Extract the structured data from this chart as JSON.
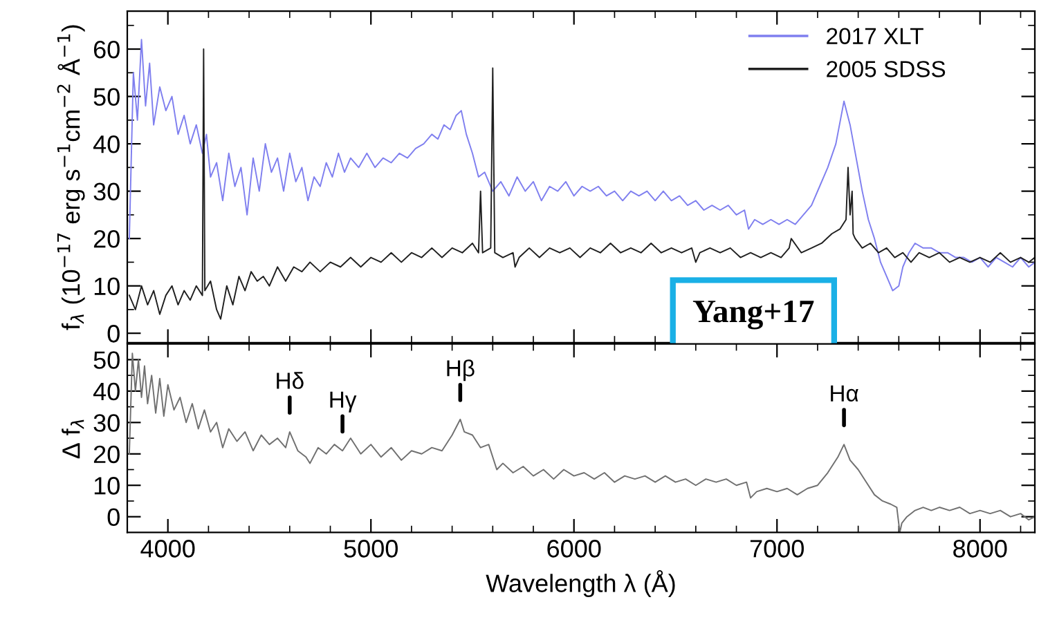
{
  "chart_data": [
    {
      "type": "line",
      "ylabel": "f$_{λ}$ (10$^{−17}$ erg s$^{−1}$cm$^{−2}$ Å$^{−1}$)",
      "legend": "top right",
      "tick_labels": "y",
      "xlim": [
        3800,
        8270
      ],
      "ylim": [
        -2,
        68
      ],
      "xticks": [
        4000,
        5000,
        6000,
        7000,
        8000,
        {
          "value": 4200,
          "label": null
        },
        {
          "value": 4400,
          "label": null
        },
        {
          "value": 4600,
          "label": null
        },
        {
          "value": 4800,
          "label": null
        },
        {
          "value": 5200,
          "label": null
        },
        {
          "value": 5400,
          "label": null
        },
        {
          "value": 5600,
          "label": null
        },
        {
          "value": 5800,
          "label": null
        },
        {
          "value": 6200,
          "label": null
        },
        {
          "value": 6400,
          "label": null
        },
        {
          "value": 6600,
          "label": null
        },
        {
          "value": 6800,
          "label": null
        },
        {
          "value": 7200,
          "label": null
        },
        {
          "value": 7400,
          "label": null
        },
        {
          "value": 7600,
          "label": null
        },
        {
          "value": 7800,
          "label": null
        },
        {
          "value": 8200,
          "label": null
        }
      ],
      "yticks": [
        0,
        10,
        20,
        30,
        40,
        50,
        60,
        {
          "value": 5,
          "label": null
        },
        {
          "value": 15,
          "label": null
        },
        {
          "value": 25,
          "label": null
        },
        {
          "value": 35,
          "label": null
        },
        {
          "value": 45,
          "label": null
        },
        {
          "value": 55,
          "label": null
        },
        {
          "value": 65,
          "label": null
        }
      ],
      "annotations": [
        "Yang+17"
      ],
      "series": [
        {
          "name": "2017 XLT",
          "color": "#7f7fef",
          "x": [
            3810,
            3830,
            3850,
            3870,
            3890,
            3910,
            3930,
            3960,
            3990,
            4020,
            4050,
            4080,
            4110,
            4140,
            4170,
            4190,
            4210,
            4240,
            4270,
            4300,
            4330,
            4360,
            4390,
            4420,
            4450,
            4480,
            4510,
            4540,
            4570,
            4600,
            4630,
            4660,
            4690,
            4720,
            4750,
            4780,
            4810,
            4840,
            4870,
            4900,
            4940,
            4980,
            5020,
            5060,
            5100,
            5140,
            5180,
            5220,
            5260,
            5300,
            5330,
            5360,
            5390,
            5420,
            5445,
            5470,
            5500,
            5530,
            5560,
            5600,
            5640,
            5680,
            5720,
            5760,
            5800,
            5840,
            5880,
            5920,
            5960,
            6000,
            6040,
            6080,
            6120,
            6160,
            6200,
            6240,
            6280,
            6320,
            6360,
            6400,
            6440,
            6480,
            6520,
            6560,
            6600,
            6640,
            6680,
            6720,
            6760,
            6800,
            6840,
            6860,
            6890,
            6930,
            6970,
            7010,
            7050,
            7090,
            7130,
            7170,
            7210,
            7250,
            7290,
            7330,
            7360,
            7390,
            7420,
            7450,
            7480,
            7510,
            7540,
            7570,
            7600,
            7620,
            7650,
            7680,
            7720,
            7760,
            7800,
            7840,
            7880,
            7920,
            7960,
            8000,
            8040,
            8080,
            8120,
            8160,
            8200,
            8240,
            8270
          ],
          "values": [
            20,
            55,
            45,
            62,
            48,
            57,
            44,
            52,
            47,
            50,
            42,
            46,
            40,
            44,
            38,
            42,
            33,
            36,
            28,
            38,
            31,
            35,
            25,
            37,
            30,
            40,
            34,
            37,
            30,
            38,
            32,
            35,
            28,
            33,
            31,
            36,
            33,
            38,
            34,
            37,
            35,
            38,
            35,
            37,
            36,
            38,
            37,
            39,
            40,
            42,
            41,
            44,
            43,
            46,
            47,
            42,
            38,
            33,
            34,
            30,
            32,
            29,
            33,
            30,
            32,
            28,
            31,
            30,
            32,
            29,
            31,
            30,
            31,
            29,
            30,
            28,
            30,
            29,
            30,
            28,
            30,
            28,
            29,
            27,
            28,
            26,
            27,
            26,
            27,
            25,
            26,
            22,
            24,
            23,
            24,
            23,
            24,
            23,
            25,
            27,
            31,
            35,
            40,
            49,
            44,
            37,
            30,
            24,
            20,
            15,
            12,
            9,
            10,
            14,
            17,
            19,
            18,
            18,
            17,
            17,
            16,
            16,
            15,
            16,
            14,
            16,
            15,
            14,
            16,
            14,
            15
          ]
        },
        {
          "name": "2005 SDSS",
          "color": "#202020",
          "x": [
            3810,
            3840,
            3870,
            3900,
            3930,
            3960,
            3990,
            4020,
            4050,
            4080,
            4110,
            4140,
            4170,
            4176,
            4182,
            4210,
            4240,
            4260,
            4290,
            4320,
            4350,
            4380,
            4410,
            4440,
            4470,
            4500,
            4540,
            4580,
            4620,
            4660,
            4700,
            4750,
            4800,
            4850,
            4900,
            4950,
            5000,
            5050,
            5100,
            5150,
            5200,
            5250,
            5300,
            5350,
            5400,
            5450,
            5500,
            5530,
            5540,
            5550,
            5590,
            5600,
            5610,
            5650,
            5700,
            5710,
            5730,
            5780,
            5830,
            5880,
            5930,
            5980,
            6030,
            6080,
            6130,
            6180,
            6230,
            6280,
            6330,
            6380,
            6430,
            6480,
            6530,
            6580,
            6600,
            6620,
            6670,
            6720,
            6770,
            6820,
            6870,
            6920,
            6970,
            7020,
            7060,
            7070,
            7120,
            7170,
            7220,
            7270,
            7310,
            7340,
            7350,
            7360,
            7370,
            7375,
            7385,
            7420,
            7460,
            7500,
            7540,
            7580,
            7620,
            7660,
            7700,
            7750,
            7800,
            7850,
            7900,
            7950,
            8000,
            8050,
            8100,
            8150,
            8200,
            8240,
            8270
          ],
          "values": [
            8,
            5,
            10,
            6,
            9,
            4,
            8,
            10,
            6,
            9,
            7,
            10,
            8,
            60,
            9,
            11,
            5,
            3,
            10,
            6,
            12,
            9,
            13,
            11,
            12,
            10,
            14,
            11,
            14,
            13,
            15,
            13,
            15,
            14,
            16,
            14,
            16,
            15,
            17,
            15,
            17,
            16,
            18,
            16,
            18,
            17,
            19,
            17,
            30,
            17,
            18,
            56,
            17,
            16,
            17,
            14,
            16,
            18,
            16,
            18,
            17,
            18,
            16,
            18,
            17,
            19,
            17,
            18,
            17,
            19,
            17,
            18,
            17,
            18,
            15,
            17,
            18,
            17,
            18,
            16,
            17,
            16,
            17,
            16,
            18,
            20,
            17,
            18,
            19,
            21,
            22,
            24,
            35,
            25,
            30,
            21,
            20,
            18,
            19,
            17,
            18,
            16,
            17,
            15,
            17,
            16,
            17,
            15,
            16,
            15,
            16,
            15,
            17,
            15,
            16,
            15,
            16
          ]
        }
      ]
    },
    {
      "type": "line",
      "ylabel": "Δ f$_{λ}$",
      "xlabel": "Wavelength λ (Å)",
      "xlim": [
        3800,
        8270
      ],
      "ylim": [
        -5,
        55
      ],
      "xticks": [
        4000,
        5000,
        6000,
        7000,
        8000,
        {
          "value": 4200,
          "label": null
        },
        {
          "value": 4400,
          "label": null
        },
        {
          "value": 4600,
          "label": null
        },
        {
          "value": 4800,
          "label": null
        },
        {
          "value": 5200,
          "label": null
        },
        {
          "value": 5400,
          "label": null
        },
        {
          "value": 5600,
          "label": null
        },
        {
          "value": 5800,
          "label": null
        },
        {
          "value": 6200,
          "label": null
        },
        {
          "value": 6400,
          "label": null
        },
        {
          "value": 6600,
          "label": null
        },
        {
          "value": 6800,
          "label": null
        },
        {
          "value": 7200,
          "label": null
        },
        {
          "value": 7400,
          "label": null
        },
        {
          "value": 7600,
          "label": null
        },
        {
          "value": 7800,
          "label": null
        },
        {
          "value": 8200,
          "label": null
        }
      ],
      "yticks": [
        0,
        10,
        20,
        30,
        40,
        50,
        {
          "value": 5,
          "label": null
        },
        {
          "value": 15,
          "label": null
        },
        {
          "value": 25,
          "label": null
        },
        {
          "value": 35,
          "label": null
        },
        {
          "value": 45,
          "label": null
        }
      ],
      "annotations": [
        {
          "text": "Hδ",
          "x": 4600,
          "y": 27
        },
        {
          "text": "Hγ",
          "x": 4860,
          "y": 21
        },
        {
          "text": "Hβ",
          "x": 5440,
          "y": 31
        },
        {
          "text": "Hα",
          "x": 7330,
          "y": 23
        }
      ],
      "series": [
        {
          "color": "#707070",
          "x": [
            3810,
            3825,
            3840,
            3855,
            3870,
            3885,
            3900,
            3920,
            3940,
            3960,
            3980,
            4000,
            4030,
            4060,
            4090,
            4120,
            4150,
            4180,
            4210,
            4240,
            4270,
            4300,
            4340,
            4380,
            4420,
            4460,
            4500,
            4540,
            4580,
            4600,
            4640,
            4680,
            4700,
            4740,
            4780,
            4820,
            4860,
            4900,
            4950,
            5000,
            5050,
            5100,
            5150,
            5200,
            5250,
            5300,
            5350,
            5400,
            5440,
            5460,
            5500,
            5540,
            5580,
            5620,
            5650,
            5700,
            5750,
            5800,
            5850,
            5900,
            5950,
            6000,
            6050,
            6100,
            6150,
            6200,
            6250,
            6300,
            6350,
            6400,
            6450,
            6500,
            6550,
            6600,
            6650,
            6700,
            6750,
            6800,
            6850,
            6870,
            6900,
            6950,
            7000,
            7050,
            7100,
            7150,
            7200,
            7250,
            7300,
            7330,
            7360,
            7400,
            7440,
            7480,
            7520,
            7560,
            7590,
            7605,
            7615,
            7640,
            7680,
            7720,
            7760,
            7800,
            7850,
            7900,
            7950,
            8000,
            8050,
            8100,
            8150,
            8200,
            8240,
            8270
          ],
          "values": [
            20,
            52,
            40,
            50,
            38,
            48,
            36,
            45,
            33,
            44,
            32,
            42,
            34,
            38,
            30,
            36,
            28,
            34,
            27,
            30,
            22,
            28,
            24,
            27,
            21,
            26,
            23,
            25,
            22,
            27,
            21,
            19,
            17,
            22,
            20,
            23,
            21,
            25,
            20,
            23,
            19,
            22,
            18,
            21,
            20,
            22,
            21,
            26,
            31,
            27,
            26,
            22,
            23,
            15,
            17,
            14,
            16,
            13,
            15,
            12,
            15,
            13,
            14,
            12,
            14,
            11,
            13,
            12,
            13,
            11,
            13,
            11,
            12,
            10,
            12,
            11,
            12,
            10,
            11,
            6,
            8,
            9,
            8,
            9,
            7,
            9,
            10,
            14,
            19,
            23,
            18,
            15,
            11,
            7,
            5,
            4,
            3,
            -5,
            -2,
            0,
            2,
            3,
            2,
            3,
            2,
            3,
            1,
            2,
            1,
            2,
            0,
            1,
            -1,
            0
          ]
        }
      ]
    }
  ]
}
